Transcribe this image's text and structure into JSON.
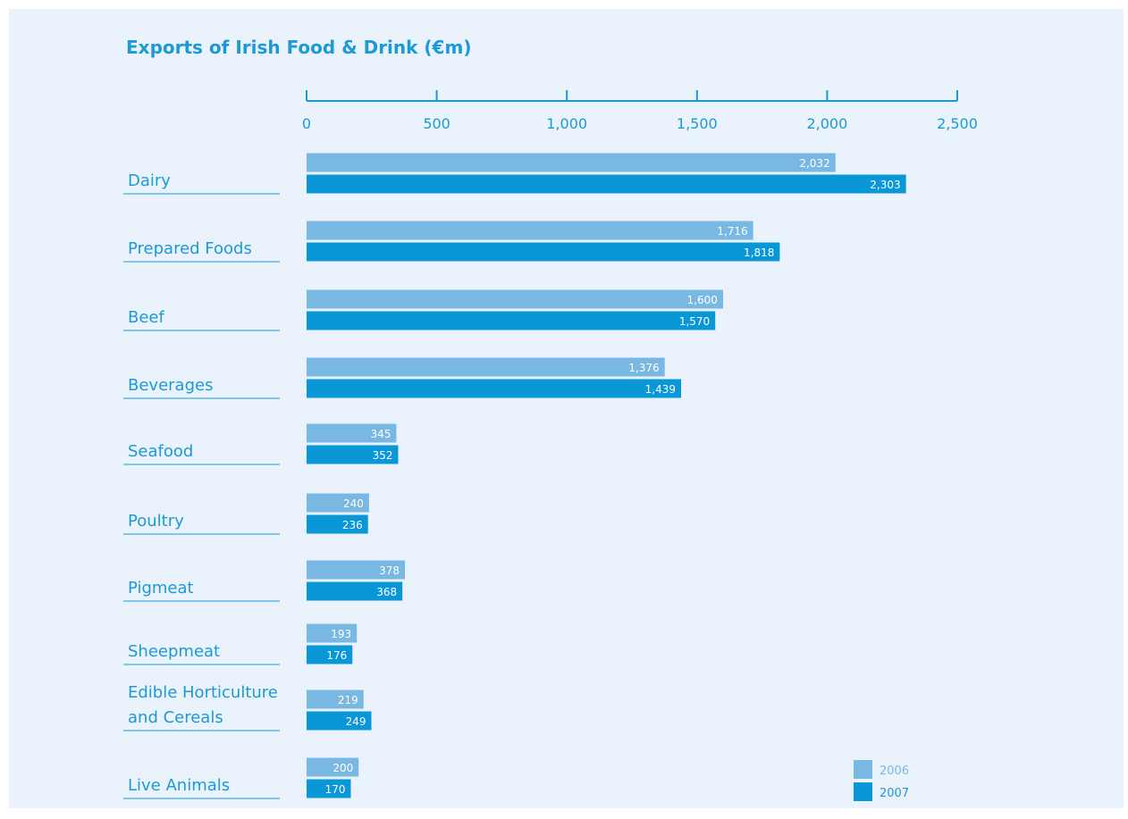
{
  "chart_data": {
    "type": "bar",
    "orientation": "horizontal",
    "title": "Exports of Irish Food & Drink (€m)",
    "xlim": [
      0,
      2500
    ],
    "xticks": [
      0,
      500,
      1000,
      1500,
      2000,
      2500
    ],
    "xtick_labels": [
      "0",
      "500",
      "1,000",
      "1,500",
      "2,000",
      "2,500"
    ],
    "axis_position": "top",
    "grid": false,
    "legend_position": "bottom-right",
    "categories": [
      [
        "Dairy"
      ],
      [
        "Prepared Foods"
      ],
      [
        "Beef"
      ],
      [
        "Beverages"
      ],
      [
        "Seafood"
      ],
      [
        "Poultry"
      ],
      [
        "Pigmeat"
      ],
      [
        "Sheepmeat"
      ],
      [
        "Edible Horticulture",
        "and Cereals"
      ],
      [
        "Live Animals"
      ]
    ],
    "series": [
      {
        "name": "2006",
        "color": "#7ab8e4",
        "values": [
          2032,
          1716,
          1600,
          1376,
          345,
          240,
          378,
          193,
          219,
          200
        ],
        "labels": [
          "2,032",
          "1,716",
          "1,600",
          "1,376",
          "345",
          "240",
          "378",
          "193",
          "219",
          "200"
        ]
      },
      {
        "name": "2007",
        "color": "#0a97d8",
        "values": [
          2303,
          1818,
          1570,
          1439,
          352,
          236,
          368,
          176,
          249,
          170
        ],
        "labels": [
          "2,303",
          "1,818",
          "1,570",
          "1,439",
          "352",
          "236",
          "368",
          "176",
          "249",
          "170"
        ]
      }
    ],
    "colors": {
      "text": "#1c9ad6",
      "axis": "#1c9ad6",
      "background": "#eaf3fb"
    }
  }
}
